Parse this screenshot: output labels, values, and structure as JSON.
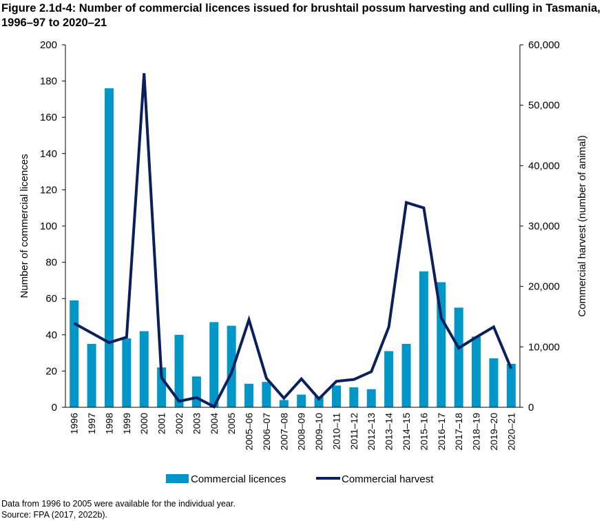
{
  "chart_data": {
    "type": "bar+line",
    "title": "Figure 2.1d-4: Number of commercial licences issued for brushtail possum harvesting and culling in Tasmania, 1996–97 to 2020–21",
    "ylabel": "Number of commercial licences",
    "y2label": "Commercial harvest (number of animal)",
    "ylim": [
      0,
      200
    ],
    "y2lim": [
      0,
      60000
    ],
    "yticks": [
      "0",
      "20",
      "40",
      "60",
      "80",
      "100",
      "120",
      "140",
      "160",
      "180",
      "200"
    ],
    "y2ticks": [
      "0",
      "10,000",
      "20,000",
      "30,000",
      "40,000",
      "50,000",
      "60,000"
    ],
    "categories": [
      "1996",
      "1997",
      "1998",
      "1999",
      "2000",
      "2001",
      "2002",
      "2003",
      "2004",
      "2005",
      "2005–06",
      "2006–07",
      "2007–08",
      "2008–09",
      "2009–10",
      "2010–11",
      "2011–12",
      "2012–13",
      "2013–14",
      "2014–15",
      "2015–16",
      "2016–17",
      "2017–18",
      "2018–19",
      "2019–20",
      "2020–21"
    ],
    "series": [
      {
        "name": "Commercial licences",
        "type": "bar",
        "axis": "left",
        "color": "#0096c8",
        "values": [
          59,
          35,
          176,
          38,
          42,
          22,
          40,
          17,
          47,
          45,
          13,
          14,
          4,
          7,
          6,
          12,
          11,
          10,
          31,
          35,
          75,
          69,
          55,
          39,
          27,
          24
        ]
      },
      {
        "name": "Commercial harvest",
        "type": "line",
        "axis": "right",
        "color": "#0a1f5c",
        "values": [
          13900,
          12300,
          10700,
          11600,
          55300,
          4900,
          1000,
          1600,
          100,
          5700,
          14500,
          4800,
          1500,
          4700,
          1400,
          4300,
          4600,
          5900,
          13300,
          33900,
          33000,
          14800,
          9800,
          11600,
          13300,
          6400
        ]
      }
    ],
    "legend": "bottom",
    "grid": false
  },
  "notes": [
    "Data from 1996 to 2005 were available for the individual year.",
    "Source: FPA (2017, 2022b)."
  ]
}
